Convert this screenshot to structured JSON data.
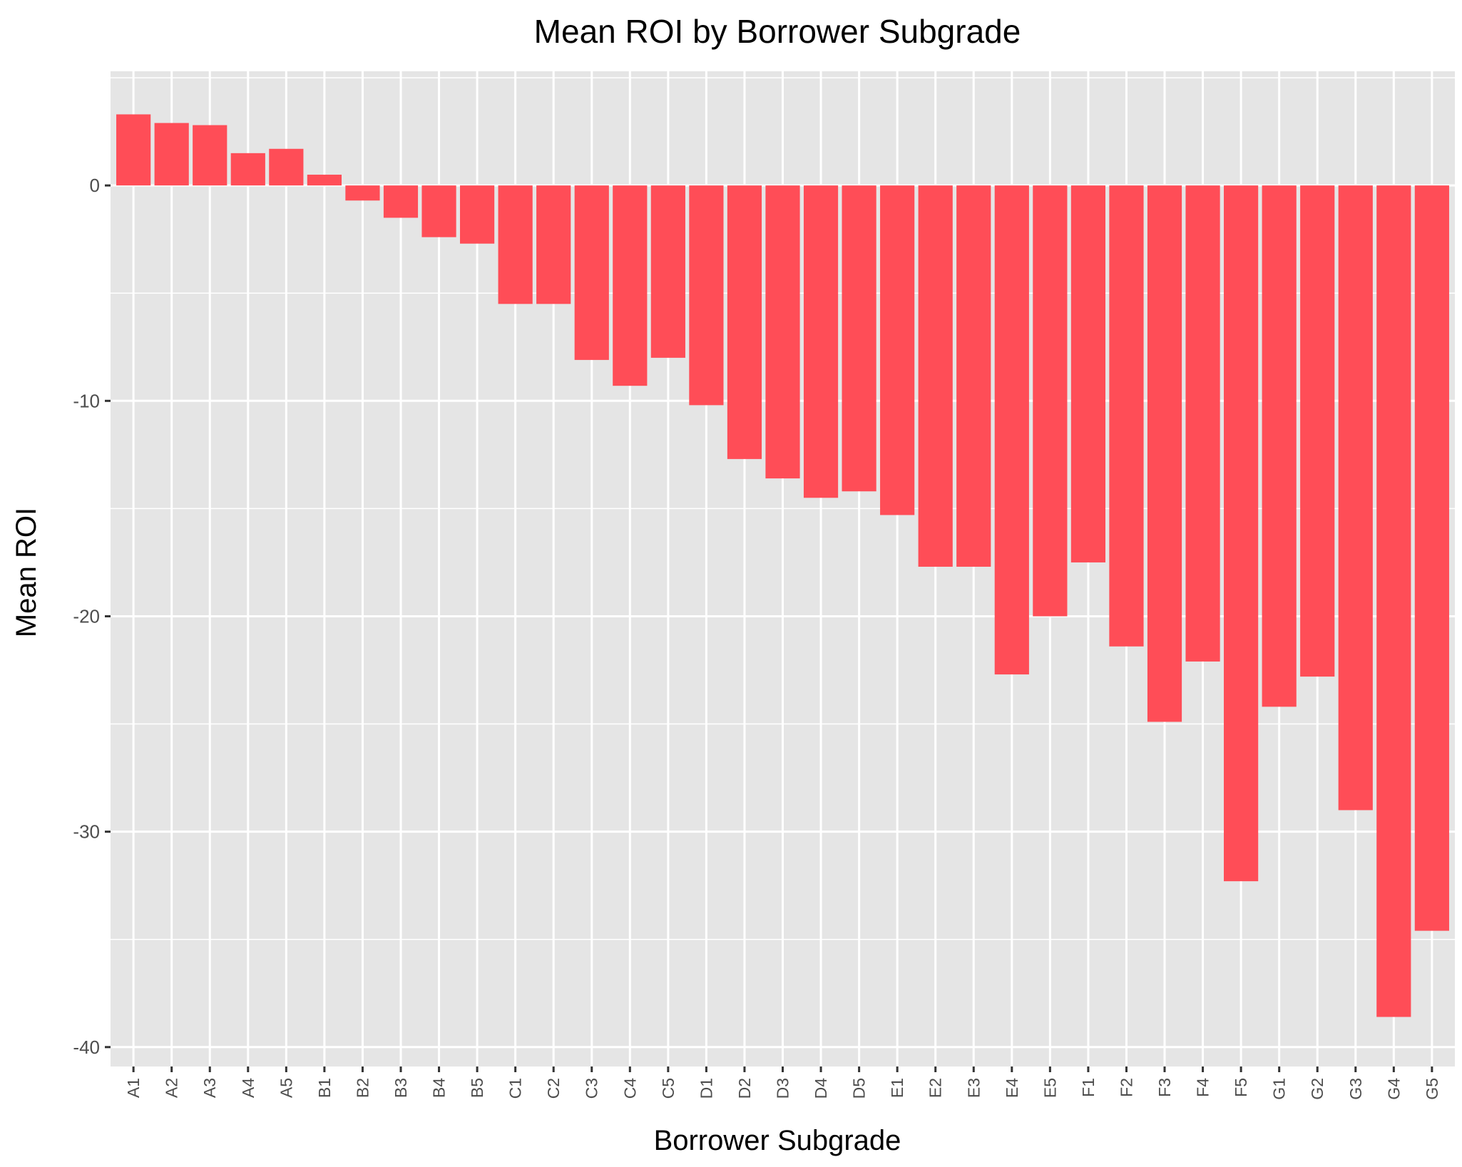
{
  "chart_data": {
    "type": "bar",
    "title": "Mean ROI by Borrower Subgrade",
    "xlabel": "Borrower Subgrade",
    "ylabel": "Mean ROI",
    "categories": [
      "A1",
      "A2",
      "A3",
      "A4",
      "A5",
      "B1",
      "B2",
      "B3",
      "B4",
      "B5",
      "C1",
      "C2",
      "C3",
      "C4",
      "C5",
      "D1",
      "D2",
      "D3",
      "D4",
      "D5",
      "E1",
      "E2",
      "E3",
      "E4",
      "E5",
      "F1",
      "F2",
      "F3",
      "F4",
      "F5",
      "G1",
      "G2",
      "G3",
      "G4",
      "G5"
    ],
    "values": [
      3.3,
      2.9,
      2.8,
      1.5,
      1.7,
      0.5,
      -0.7,
      -1.5,
      -2.4,
      -2.7,
      -5.5,
      -5.5,
      -8.1,
      -9.3,
      -8.0,
      -10.2,
      -12.7,
      -13.6,
      -14.5,
      -14.2,
      -15.3,
      -17.7,
      -17.7,
      -22.7,
      -20.0,
      -17.5,
      -21.4,
      -24.9,
      -22.1,
      -32.3,
      -24.2,
      -22.8,
      -29.0,
      -38.6,
      -34.6
    ],
    "ylim": [
      -40.9,
      5.3
    ],
    "yticks": [
      0,
      -10,
      -20,
      -30,
      -40
    ],
    "ytick_labels": [
      "0",
      "-10",
      "-20",
      "-30",
      "-40"
    ],
    "grid": true,
    "bar_color": "#FF4D57",
    "panel_color": "#E5E5E5",
    "grid_color": "#FFFFFF"
  }
}
